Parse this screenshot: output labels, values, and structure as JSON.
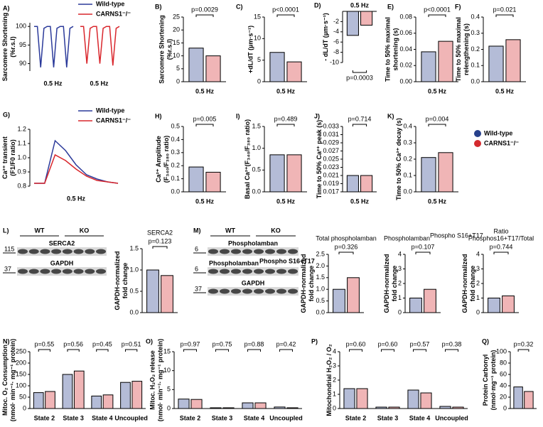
{
  "chart_data": [
    {
      "type": "line",
      "letter": "A)",
      "ylabel": [
        "Sarcomere Shortening",
        "(%r.s.l)"
      ],
      "ylim": [
        88,
        101
      ],
      "yticks": [
        90,
        95,
        100
      ],
      "xlabels": [
        "0.5 Hz",
        "0.5 Hz"
      ],
      "side_by_side": true,
      "legend": "top-right",
      "series": [
        {
          "name": "Wild-type",
          "color": "#2b3a9a",
          "values": [
            100,
            100,
            89,
            99.5,
            100,
            100,
            89,
            99.5,
            100,
            100,
            89,
            99.5,
            100
          ]
        },
        {
          "name": "CARNS1⁻/⁻",
          "color": "#d9262c",
          "values": [
            100,
            100,
            90,
            99.5,
            100,
            100,
            90,
            99.5,
            100,
            100,
            89.5,
            99.5,
            100
          ]
        }
      ]
    },
    {
      "type": "bar",
      "letter": "B)",
      "ylabel": [
        "Sarcomere Shortening",
        "(%r.s.l)"
      ],
      "ylim": [
        0,
        25
      ],
      "yticks": [
        0,
        5,
        10,
        15,
        20,
        25
      ],
      "categories": [
        "0.5 Hz"
      ],
      "pvalues": [
        "p=0.0029"
      ],
      "series": [
        {
          "color": "#27408b",
          "values": [
            13
          ]
        },
        {
          "color": "#d42a2e",
          "values": [
            10
          ]
        }
      ]
    },
    {
      "type": "bar",
      "letter": "C)",
      "ylabel": [
        "+dL/dT (µm·s⁻¹)"
      ],
      "ylim": [
        0,
        15
      ],
      "yticks": [
        0,
        5,
        10,
        15
      ],
      "categories": [
        "0.5 Hz"
      ],
      "pvalues": [
        "p<0.0001"
      ],
      "series": [
        {
          "color": "#27408b",
          "values": [
            6.8
          ]
        },
        {
          "color": "#d42a2e",
          "values": [
            4.6
          ]
        }
      ]
    },
    {
      "type": "bar",
      "letter": "D)",
      "title": "0.5 Hz",
      "ylabel": [
        "- dL/dT (µm·s⁻¹)"
      ],
      "ylim": [
        -10,
        0
      ],
      "yticks": [
        -10,
        -8,
        -6,
        -4,
        -2
      ],
      "categories": [
        null
      ],
      "pvalues": [
        "p=0.0003"
      ],
      "pvalue_position": "bottom",
      "series": [
        {
          "color": "#27408b",
          "values": [
            -4.7
          ]
        },
        {
          "color": "#d42a2e",
          "values": [
            -2.7
          ]
        }
      ]
    },
    {
      "type": "bar",
      "letter": "E)",
      "ylabel": [
        "Time to 50% maximal",
        "shortening (s)"
      ],
      "ylim": [
        0,
        0.08
      ],
      "yticks": [
        {
          "value": 0,
          "label": "0.00"
        },
        0.02,
        0.04,
        0.06,
        0.08
      ],
      "categories": [
        "0.5 Hz"
      ],
      "pvalues": [
        "p<0.0001"
      ],
      "series": [
        {
          "color": "#27408b",
          "values": [
            0.037
          ]
        },
        {
          "color": "#d42a2e",
          "values": [
            0.05
          ]
        }
      ]
    },
    {
      "type": "bar",
      "letter": "F)",
      "ylabel": [
        "Time to 50% maximal",
        "relengthening (s)"
      ],
      "ylim": [
        0,
        0.4
      ],
      "yticks": [
        {
          "value": 0,
          "label": "0.0"
        },
        0.1,
        0.2,
        0.3,
        0.4
      ],
      "categories": [
        "0.5 Hz"
      ],
      "pvalues": [
        "p=0.021"
      ],
      "series": [
        {
          "color": "#27408b",
          "values": [
            0.22
          ]
        },
        {
          "color": "#d42a2e",
          "values": [
            0.26
          ]
        }
      ]
    },
    {
      "type": "line",
      "letter": "G)",
      "ylabel": [
        "Ca²⁺ transient",
        "(F1/F0 ratio)"
      ],
      "ylim": [
        0.8,
        1.2
      ],
      "yticks": [
        0.8,
        0.9,
        {
          "value": 1,
          "label": "1.0"
        },
        1.1,
        1.2
      ],
      "xlabels": [
        "0.5 Hz"
      ],
      "legend": "top-right",
      "series": [
        {
          "name": "Wild-type",
          "color": "#2b3a9a",
          "values": [
            0.82,
            0.82,
            1.12,
            1.05,
            0.95,
            0.88,
            0.85,
            0.83,
            0.82
          ]
        },
        {
          "name": "CARNS1⁻/⁻",
          "color": "#d9262c",
          "values": [
            0.82,
            0.82,
            1.02,
            0.98,
            0.92,
            0.87,
            0.84,
            0.83,
            0.82
          ]
        }
      ]
    },
    {
      "type": "bar",
      "letter": "H)",
      "ylabel": [
        "Ca²⁺ Amplitude",
        "(F₃₄₀/F₃₈₀ ratio)"
      ],
      "ylim": [
        0,
        0.5
      ],
      "yticks": [
        {
          "value": 0,
          "label": "0.0"
        },
        0.1,
        0.2,
        0.3,
        0.4,
        0.5
      ],
      "categories": [
        "0.5 Hz"
      ],
      "pvalues": [
        "p=0.005"
      ],
      "series": [
        {
          "color": "#27408b",
          "values": [
            0.19
          ]
        },
        {
          "color": "#d42a2e",
          "values": [
            0.15
          ]
        }
      ]
    },
    {
      "type": "bar",
      "letter": "I)",
      "ylabel": [
        "Basal Ca²⁺(F₃₄₀/F₃₈₀ ratio)"
      ],
      "ylim": [
        0,
        1.5
      ],
      "yticks": [
        {
          "value": 0,
          "label": "0.0"
        },
        0.5,
        {
          "value": 1,
          "label": "1.0"
        },
        1.5
      ],
      "categories": [
        "0.5 Hz"
      ],
      "pvalues": [
        "p=0.489"
      ],
      "series": [
        {
          "color": "#27408b",
          "values": [
            0.85
          ]
        },
        {
          "color": "#d42a2e",
          "values": [
            0.85
          ]
        }
      ]
    },
    {
      "type": "bar",
      "letter": "J)",
      "ylabel": [
        "Time to 50% Ca²⁺ peak (s)"
      ],
      "ylim": [
        0.017,
        0.033
      ],
      "yticks": [
        0.017,
        0.019,
        0.021,
        0.023,
        0.025,
        0.027,
        0.029,
        0.031,
        0.033
      ],
      "categories": [
        "0.5 Hz"
      ],
      "pvalues": [
        "p=0.714"
      ],
      "series": [
        {
          "color": "#27408b",
          "values": [
            0.021
          ]
        },
        {
          "color": "#d42a2e",
          "values": [
            0.021
          ]
        }
      ]
    },
    {
      "type": "bar",
      "letter": "K)",
      "ylabel": [
        "Time to 50% Ca²⁺ decay (s)"
      ],
      "ylim": [
        0,
        0.4
      ],
      "yticks": [
        {
          "value": 0,
          "label": "0.0"
        },
        0.1,
        0.2,
        0.3,
        0.4
      ],
      "categories": [
        "0.5 Hz"
      ],
      "pvalues": [
        "p=0.004"
      ],
      "legend": "right",
      "series": [
        {
          "name": "Wild-type",
          "color": "#27408b",
          "values": [
            0.21
          ]
        },
        {
          "name": "CARNS1⁻/⁻",
          "color": "#d42a2e",
          "values": [
            0.24
          ]
        }
      ]
    },
    {
      "type": "blot",
      "letter": "L)",
      "lanes": [
        "WT",
        "KO"
      ],
      "bands": [
        {
          "label": "SERCA2",
          "marker": 115
        },
        {
          "label": "GAPDH",
          "marker": 37
        }
      ]
    },
    {
      "type": "bar",
      "title": "SERCA2",
      "ylabel": [
        "GAPDH-normalized",
        "fold change"
      ],
      "ylim": [
        0,
        1.5
      ],
      "yticks": [
        {
          "value": 0,
          "label": "0.0"
        },
        0.5,
        {
          "value": 1,
          "label": "1.0"
        },
        1.5
      ],
      "categories": [
        null
      ],
      "pvalues": [
        "p=0.123"
      ],
      "series": [
        {
          "color": "#27408b",
          "values": [
            1.0
          ]
        },
        {
          "color": "#d42a2e",
          "values": [
            0.87
          ]
        }
      ]
    },
    {
      "type": "blot",
      "letter": "M)",
      "lanes": [
        "WT",
        "KO"
      ],
      "bands": [
        {
          "label": "Phospholamban",
          "marker": 6
        },
        {
          "label": "Phospholamban",
          "sup": "Phospho S16+T17",
          "marker": 6
        },
        {
          "label": "GAPDH",
          "marker": 37
        }
      ]
    },
    {
      "type": "bar",
      "title": "Total phospholamban",
      "ylabel": [
        "GAPDH-normalized",
        "fold change"
      ],
      "ylim": [
        0,
        2.5
      ],
      "yticks": [
        {
          "value": 0,
          "label": "0.0"
        },
        0.5,
        {
          "value": 1,
          "label": "1.0"
        },
        1.5,
        {
          "value": 2,
          "label": "2.0"
        },
        2.5
      ],
      "categories": [
        null
      ],
      "pvalues": [
        "p=0.326"
      ],
      "series": [
        {
          "color": "#27408b",
          "values": [
            1.0
          ]
        },
        {
          "color": "#d42a2e",
          "values": [
            1.5
          ]
        }
      ]
    },
    {
      "type": "bar",
      "title": "Phospholamban",
      "title_sup": "Phospho S16+T17",
      "ylabel": [
        "GAPDH-normalized",
        "fold change"
      ],
      "ylim": [
        0,
        4
      ],
      "yticks": [
        0,
        1,
        2,
        3,
        4
      ],
      "categories": [
        null
      ],
      "pvalues": [
        "p=0.107"
      ],
      "series": [
        {
          "color": "#27408b",
          "values": [
            1.0
          ]
        },
        {
          "color": "#d42a2e",
          "values": [
            1.6
          ]
        }
      ]
    },
    {
      "type": "bar",
      "title": [
        "Ratio",
        "Phosphos16+T17/Total"
      ],
      "ylabel": [
        "GAPDH-normalized",
        "fold change"
      ],
      "ylim": [
        0,
        4
      ],
      "yticks": [
        0,
        1,
        2,
        3,
        4
      ],
      "categories": [
        null
      ],
      "pvalues": [
        "p=0.744"
      ],
      "series": [
        {
          "color": "#27408b",
          "values": [
            1.0
          ]
        },
        {
          "color": "#d42a2e",
          "values": [
            1.15
          ]
        }
      ]
    },
    {
      "type": "bar",
      "letter": "N)",
      "ylabel": [
        "Mitoc. O₂ Consumption",
        "(nmol· min⁻¹· mg⁻¹ protein)"
      ],
      "ylim": [
        0,
        250
      ],
      "yticks": [
        0,
        50,
        100,
        150,
        200,
        250
      ],
      "categories": [
        "State 2",
        "State 3",
        "State 4",
        "Uncoupled"
      ],
      "pvalues": [
        "p=0.55",
        "p=0.56",
        "p=0.45",
        "p=0.51"
      ],
      "series": [
        {
          "color": "#27408b",
          "values": [
            70,
            150,
            55,
            115
          ]
        },
        {
          "color": "#d42a2e",
          "values": [
            75,
            165,
            60,
            120
          ]
        }
      ]
    },
    {
      "type": "bar",
      "letter": "O)",
      "ylabel": [
        "Mitoc. H₂O₂ release",
        "(nmol· min⁻¹· mg⁻¹ protein)"
      ],
      "ylim": [
        0,
        15
      ],
      "yticks": [
        0,
        5,
        10,
        15
      ],
      "categories": [
        "State 2",
        "State 3",
        "State 4",
        "Uncoupled"
      ],
      "pvalues": [
        "p=0.97",
        "p=0.75",
        "p=0.88",
        "p=0.42"
      ],
      "series": [
        {
          "color": "#27408b",
          "values": [
            2.5,
            0.2,
            1.5,
            0.4
          ]
        },
        {
          "color": "#d42a2e",
          "values": [
            2.4,
            0.2,
            1.5,
            0.2
          ]
        }
      ]
    },
    {
      "type": "bar",
      "letter": "P)",
      "ylabel": [
        "Mitochondrial H₂O₂ / O₂"
      ],
      "ylim": [
        0,
        4
      ],
      "yticks": [
        0,
        1,
        2,
        3,
        4
      ],
      "categories": [
        "State 2",
        "State 3",
        "State 4",
        "Uncoupled"
      ],
      "pvalues": [
        "p=0.60",
        "p=0.60",
        "p=0.57",
        "p=0.38"
      ],
      "series": [
        {
          "color": "#27408b",
          "values": [
            1.4,
            0.1,
            1.3,
            0.15
          ]
        },
        {
          "color": "#d42a2e",
          "values": [
            1.4,
            0.1,
            1.1,
            0.1
          ]
        }
      ]
    },
    {
      "type": "bar",
      "letter": "Q)",
      "ylabel": [
        "Protein Carbonyl",
        "(nmol·mg⁻¹ protein)"
      ],
      "ylim": [
        0,
        100
      ],
      "yticks": [
        0,
        20,
        40,
        60,
        80,
        100
      ],
      "categories": [
        null
      ],
      "pvalues": [
        "p=0.32"
      ],
      "series": [
        {
          "color": "#27408b",
          "values": [
            38
          ]
        },
        {
          "color": "#d42a2e",
          "values": [
            30
          ]
        }
      ]
    }
  ]
}
